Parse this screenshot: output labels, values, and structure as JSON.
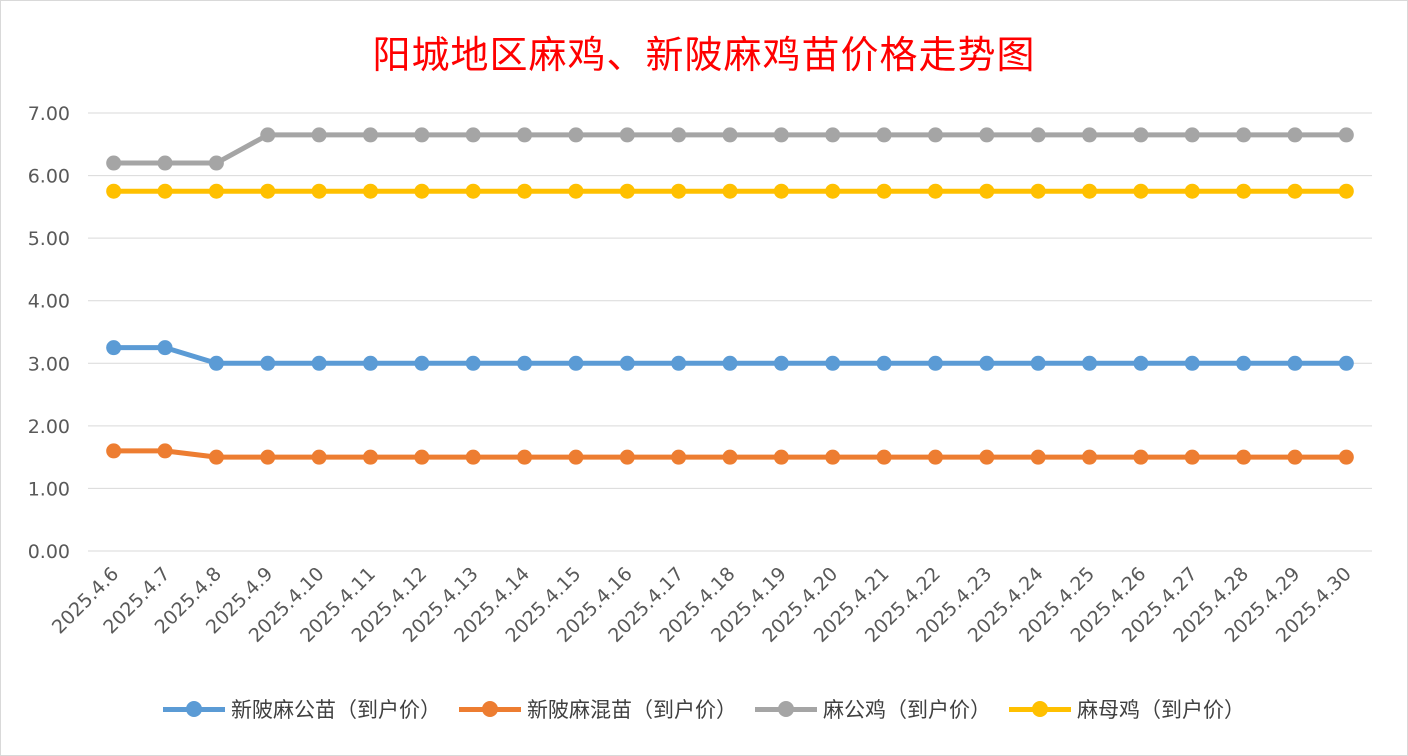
{
  "chart_data": {
    "type": "line",
    "title": "阳城地区麻鸡、新陂麻鸡苗价格走势图",
    "categories": [
      "2025.4.6",
      "2025.4.7",
      "2025.4.8",
      "2025.4.9",
      "2025.4.10",
      "2025.4.11",
      "2025.4.12",
      "2025.4.13",
      "2025.4.14",
      "2025.4.15",
      "2025.4.16",
      "2025.4.17",
      "2025.4.18",
      "2025.4.19",
      "2025.4.20",
      "2025.4.21",
      "2025.4.22",
      "2025.4.23",
      "2025.4.24",
      "2025.4.25",
      "2025.4.26",
      "2025.4.27",
      "2025.4.28",
      "2025.4.29",
      "2025.4.30"
    ],
    "ylim": [
      0,
      7
    ],
    "yticks": [
      "0.00",
      "1.00",
      "2.00",
      "3.00",
      "4.00",
      "5.00",
      "6.00",
      "7.00"
    ],
    "grid": true,
    "legend_position": "bottom",
    "series": [
      {
        "name": "新陂麻公苗（到户价）",
        "color": "#5b9bd5",
        "values": [
          3.25,
          3.25,
          3.0,
          3.0,
          3.0,
          3.0,
          3.0,
          3.0,
          3.0,
          3.0,
          3.0,
          3.0,
          3.0,
          3.0,
          3.0,
          3.0,
          3.0,
          3.0,
          3.0,
          3.0,
          3.0,
          3.0,
          3.0,
          3.0,
          3.0
        ]
      },
      {
        "name": "新陂麻混苗（到户价）",
        "color": "#ed7d31",
        "values": [
          1.6,
          1.6,
          1.5,
          1.5,
          1.5,
          1.5,
          1.5,
          1.5,
          1.5,
          1.5,
          1.5,
          1.5,
          1.5,
          1.5,
          1.5,
          1.5,
          1.5,
          1.5,
          1.5,
          1.5,
          1.5,
          1.5,
          1.5,
          1.5,
          1.5
        ]
      },
      {
        "name": "麻公鸡（到户价）",
        "color": "#a5a5a5",
        "values": [
          6.2,
          6.2,
          6.2,
          6.65,
          6.65,
          6.65,
          6.65,
          6.65,
          6.65,
          6.65,
          6.65,
          6.65,
          6.65,
          6.65,
          6.65,
          6.65,
          6.65,
          6.65,
          6.65,
          6.65,
          6.65,
          6.65,
          6.65,
          6.65,
          6.65
        ]
      },
      {
        "name": "麻母鸡（到户价）",
        "color": "#ffc000",
        "values": [
          5.75,
          5.75,
          5.75,
          5.75,
          5.75,
          5.75,
          5.75,
          5.75,
          5.75,
          5.75,
          5.75,
          5.75,
          5.75,
          5.75,
          5.75,
          5.75,
          5.75,
          5.75,
          5.75,
          5.75,
          5.75,
          5.75,
          5.75,
          5.75,
          5.75
        ]
      }
    ]
  }
}
